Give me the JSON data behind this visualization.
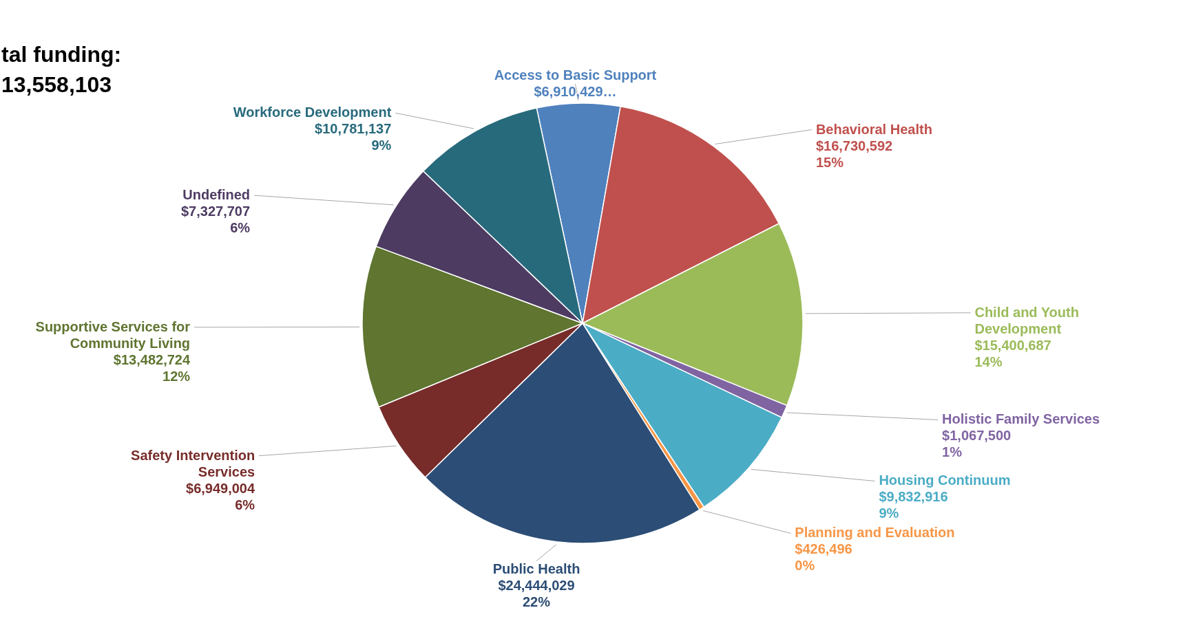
{
  "chart_data": {
    "type": "pie",
    "categories": [
      "Access to Basic Support",
      "Behavioral Health",
      "Child and Youth Development",
      "Holistic Family Services",
      "Housing Continuum",
      "Planning and Evaluation",
      "Public Health",
      "Safety Intervention Services",
      "Supportive Services for Community Living",
      "Undefined",
      "Workforce Development"
    ],
    "values": [
      6910429,
      16730592,
      15400687,
      1067500,
      9832916,
      426496,
      24444029,
      6949004,
      13482724,
      7327707,
      10781137
    ],
    "value_labels": [
      "$6,910,429…",
      "$16,730,592\n15%",
      "$15,400,687\n14%",
      "$1,067,500\n1%",
      "$9,832,916\n9%",
      "$426,496\n0%",
      "$24,444,029\n22%",
      "$6,949,004\n6%",
      "$13,482,724\n12%",
      "$7,327,707\n6%",
      "$10,781,137\n9%"
    ],
    "colors": [
      "#4f81bd",
      "#c0504d",
      "#9bbb59",
      "#8064a2",
      "#4bacc6",
      "#f79646",
      "#2c4d75",
      "#772c2a",
      "#5f7530",
      "#4d3b62",
      "#276a7c"
    ],
    "annotations": [
      "tal funding:",
      "13,558,103"
    ]
  }
}
